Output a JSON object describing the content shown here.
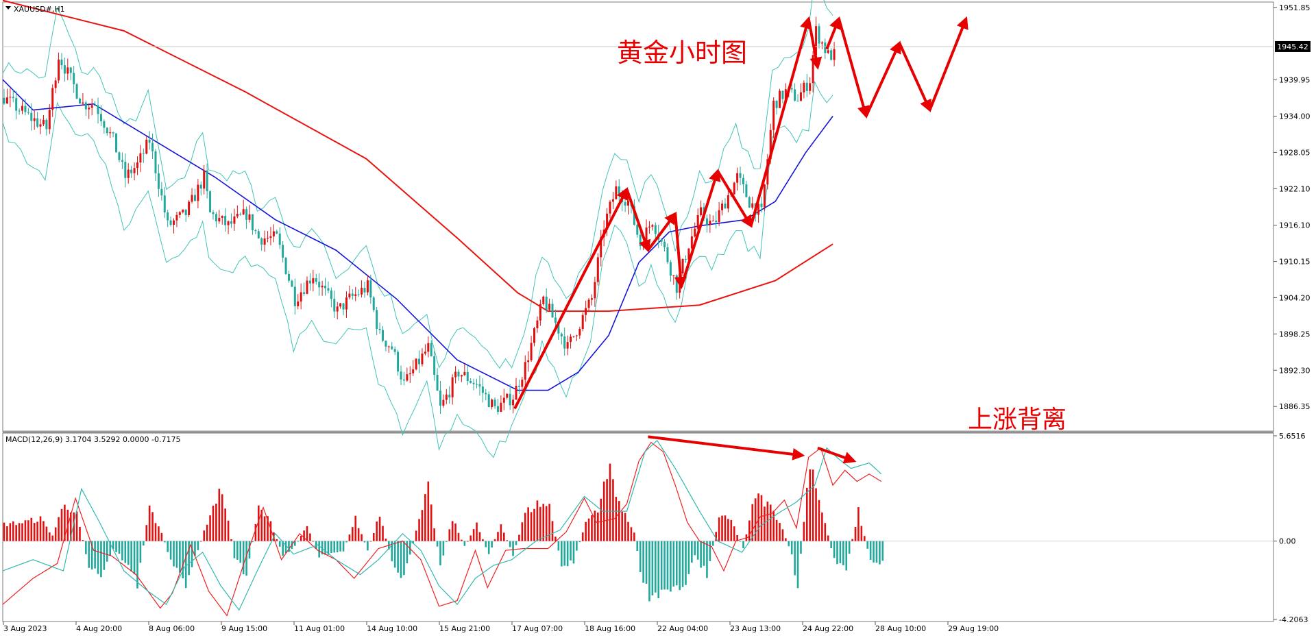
{
  "chart_data": [
    {
      "type": "candlestick",
      "symbol_label": "XAUUSD#,H1",
      "title": "黄金小时图",
      "annotation": "上涨背离",
      "current_price": "1945.42",
      "ylim": [
        1883.0,
        1952.5
      ],
      "y_tick_labels": [
        "1951.85",
        "1939.95",
        "1934.00",
        "1928.05",
        "1922.10",
        "1916.10",
        "1910.15",
        "1904.20",
        "1898.25",
        "1892.30",
        "1886.35"
      ],
      "x_tick_labels": [
        "3 Aug 2023",
        "4 Aug 20:00",
        "8 Aug 06:00",
        "9 Aug 15:00",
        "11 Aug 01:00",
        "14 Aug 10:00",
        "15 Aug 21:00",
        "17 Aug 07:00",
        "18 Aug 16:00",
        "22 Aug 04:00",
        "23 Aug 13:00",
        "24 Aug 22:00",
        "28 Aug 10:00",
        "29 Aug 19:00"
      ],
      "price_path": [
        [
          0,
          1937
        ],
        [
          8,
          1934
        ],
        [
          14,
          1932
        ],
        [
          18,
          1944
        ],
        [
          22,
          1940
        ],
        [
          26,
          1936
        ],
        [
          30,
          1936
        ],
        [
          36,
          1930
        ],
        [
          40,
          1924
        ],
        [
          44,
          1926
        ],
        [
          48,
          1930
        ],
        [
          54,
          1916
        ],
        [
          60,
          1918
        ],
        [
          66,
          1924
        ],
        [
          68,
          1918
        ],
        [
          74,
          1916
        ],
        [
          80,
          1918
        ],
        [
          84,
          1914
        ],
        [
          90,
          1914
        ],
        [
          96,
          1904
        ],
        [
          102,
          1908
        ],
        [
          106,
          1905
        ],
        [
          110,
          1902
        ],
        [
          114,
          1904
        ],
        [
          120,
          1906
        ],
        [
          124,
          1898
        ],
        [
          128,
          1896
        ],
        [
          132,
          1890
        ],
        [
          136,
          1893
        ],
        [
          140,
          1896
        ],
        [
          144,
          1886
        ],
        [
          150,
          1892
        ],
        [
          156,
          1890
        ],
        [
          162,
          1886
        ],
        [
          168,
          1888
        ],
        [
          172,
          1893
        ],
        [
          176,
          1900
        ],
        [
          178,
          1904
        ],
        [
          182,
          1900
        ],
        [
          186,
          1896
        ],
        [
          190,
          1900
        ],
        [
          194,
          1904
        ],
        [
          198,
          1916
        ],
        [
          202,
          1922
        ],
        [
          206,
          1920
        ],
        [
          210,
          1913
        ],
        [
          214,
          1917
        ],
        [
          218,
          1912
        ],
        [
          222,
          1906
        ],
        [
          226,
          1913
        ],
        [
          230,
          1918
        ],
        [
          234,
          1916
        ],
        [
          238,
          1920
        ],
        [
          242,
          1924
        ],
        [
          246,
          1920
        ],
        [
          250,
          1918
        ],
        [
          254,
          1936
        ],
        [
          258,
          1938
        ],
        [
          262,
          1937
        ],
        [
          266,
          1940
        ],
        [
          268,
          1948
        ],
        [
          272,
          1944
        ],
        [
          274,
          1944
        ]
      ],
      "indicators": {
        "ma_red": [
          [
            0,
            1953
          ],
          [
            40,
            1948
          ],
          [
            80,
            1938
          ],
          [
            120,
            1927
          ],
          [
            150,
            1914
          ],
          [
            170,
            1905
          ],
          [
            180,
            1902
          ],
          [
            200,
            1902
          ],
          [
            230,
            1903
          ],
          [
            255,
            1907
          ],
          [
            274,
            1913
          ]
        ],
        "ma_blue": [
          [
            0,
            1940
          ],
          [
            10,
            1935
          ],
          [
            30,
            1936
          ],
          [
            50,
            1930
          ],
          [
            70,
            1924
          ],
          [
            90,
            1917
          ],
          [
            110,
            1912
          ],
          [
            130,
            1904
          ],
          [
            150,
            1894
          ],
          [
            170,
            1889
          ],
          [
            180,
            1889
          ],
          [
            190,
            1892
          ],
          [
            200,
            1898
          ],
          [
            210,
            1910
          ],
          [
            220,
            1915
          ],
          [
            230,
            1916
          ],
          [
            245,
            1917
          ],
          [
            255,
            1920
          ],
          [
            265,
            1928
          ],
          [
            274,
            1934
          ]
        ]
      },
      "projection_path": [
        [
          272,
          1945
        ],
        [
          276,
          1950
        ],
        [
          285,
          1934
        ],
        [
          296,
          1946
        ],
        [
          306,
          1935
        ],
        [
          318,
          1950
        ]
      ]
    },
    {
      "type": "bar",
      "label": "MACD(12,26,9) 3.1704 3.5292 0.0000 -0.7175",
      "ylim": [
        -4.2063,
        5.6516
      ],
      "y_tick_labels": [
        "5.6516",
        "0.00",
        "-4.2063"
      ],
      "histogram_path": [
        [
          0,
          0.9
        ],
        [
          6,
          1.0
        ],
        [
          12,
          1.2
        ],
        [
          16,
          0.3
        ],
        [
          20,
          2.1
        ],
        [
          24,
          1.4
        ],
        [
          28,
          -1.3
        ],
        [
          32,
          -1.8
        ],
        [
          36,
          -0.4
        ],
        [
          40,
          -1.1
        ],
        [
          44,
          -2.3
        ],
        [
          48,
          1.8
        ],
        [
          52,
          0.4
        ],
        [
          56,
          -1.5
        ],
        [
          60,
          -2.2
        ],
        [
          64,
          -0.5
        ],
        [
          68,
          1.5
        ],
        [
          72,
          2.8
        ],
        [
          76,
          -0.8
        ],
        [
          80,
          -1.9
        ],
        [
          84,
          1.8
        ],
        [
          88,
          1.0
        ],
        [
          92,
          -0.8
        ],
        [
          96,
          -0.3
        ],
        [
          100,
          0.8
        ],
        [
          104,
          -0.8
        ],
        [
          108,
          -0.6
        ],
        [
          112,
          -0.5
        ],
        [
          116,
          1.2
        ],
        [
          120,
          -0.5
        ],
        [
          124,
          1.5
        ],
        [
          128,
          -1.2
        ],
        [
          132,
          -2.0
        ],
        [
          136,
          0.5
        ],
        [
          140,
          2.8
        ],
        [
          144,
          -1.3
        ],
        [
          148,
          1.2
        ],
        [
          152,
          -0.3
        ],
        [
          156,
          0.9
        ],
        [
          160,
          -0.7
        ],
        [
          164,
          0.9
        ],
        [
          168,
          -0.8
        ],
        [
          172,
          1.5
        ],
        [
          176,
          2.0
        ],
        [
          180,
          1.9
        ],
        [
          184,
          -1.4
        ],
        [
          188,
          -1.1
        ],
        [
          192,
          1.0
        ],
        [
          196,
          1.8
        ],
        [
          200,
          3.9
        ],
        [
          204,
          1.6
        ],
        [
          208,
          0.5
        ],
        [
          210,
          -1.7
        ],
        [
          214,
          -3.2
        ],
        [
          218,
          -2.3
        ],
        [
          224,
          -2.7
        ],
        [
          228,
          -0.7
        ],
        [
          232,
          -1.8
        ],
        [
          236,
          1.3
        ],
        [
          240,
          1.1
        ],
        [
          244,
          -0.4
        ],
        [
          248,
          2.5
        ],
        [
          252,
          2.0
        ],
        [
          256,
          1.1
        ],
        [
          260,
          -0.8
        ],
        [
          262,
          -2.5
        ],
        [
          266,
          4.5
        ],
        [
          270,
          1.6
        ],
        [
          274,
          -1.0
        ],
        [
          278,
          -1.4
        ],
        [
          282,
          1.6
        ],
        [
          286,
          -1.1
        ],
        [
          290,
          -1.2
        ]
      ],
      "macd_line": [
        [
          0,
          -3.4
        ],
        [
          10,
          -2.0
        ],
        [
          18,
          -1.2
        ],
        [
          24,
          2.3
        ],
        [
          30,
          -0.5
        ],
        [
          36,
          -0.8
        ],
        [
          44,
          -1.8
        ],
        [
          52,
          -3.6
        ],
        [
          56,
          -2.8
        ],
        [
          62,
          -0.2
        ],
        [
          68,
          -2.7
        ],
        [
          74,
          -4.0
        ],
        [
          80,
          -1.0
        ],
        [
          86,
          1.8
        ],
        [
          92,
          -1.0
        ],
        [
          98,
          0.4
        ],
        [
          104,
          -0.5
        ],
        [
          110,
          -1.0
        ],
        [
          116,
          -2.0
        ],
        [
          124,
          -0.4
        ],
        [
          132,
          0.0
        ],
        [
          138,
          -1.0
        ],
        [
          144,
          -3.5
        ],
        [
          150,
          -3.2
        ],
        [
          156,
          -0.5
        ],
        [
          160,
          -2.5
        ],
        [
          166,
          -0.5
        ],
        [
          172,
          -0.4
        ],
        [
          180,
          -0.4
        ],
        [
          186,
          0.5
        ],
        [
          192,
          2.3
        ],
        [
          196,
          1.0
        ],
        [
          202,
          1.2
        ],
        [
          206,
          2.0
        ],
        [
          210,
          4.3
        ],
        [
          214,
          5.3
        ],
        [
          218,
          4.8
        ],
        [
          222,
          3.0
        ],
        [
          226,
          1.0
        ],
        [
          230,
          0.0
        ],
        [
          234,
          -0.3
        ],
        [
          238,
          -1.6
        ],
        [
          242,
          0.0
        ],
        [
          246,
          0.2
        ],
        [
          250,
          1.3
        ],
        [
          254,
          1.5
        ],
        [
          258,
          2.2
        ],
        [
          262,
          0.7
        ],
        [
          266,
          4.5
        ],
        [
          270,
          5.0
        ],
        [
          274,
          3.0
        ],
        [
          278,
          3.8
        ],
        [
          282,
          3.2
        ],
        [
          286,
          3.6
        ],
        [
          290,
          3.2
        ]
      ],
      "signal_line": [
        [
          0,
          -1.6
        ],
        [
          10,
          -1.0
        ],
        [
          20,
          -1.6
        ],
        [
          26,
          2.8
        ],
        [
          32,
          1.0
        ],
        [
          40,
          -1.6
        ],
        [
          48,
          -2.7
        ],
        [
          54,
          -3.4
        ],
        [
          60,
          -1.4
        ],
        [
          66,
          -0.6
        ],
        [
          72,
          -2.4
        ],
        [
          78,
          -3.7
        ],
        [
          84,
          -1.6
        ],
        [
          90,
          0.4
        ],
        [
          96,
          -0.7
        ],
        [
          104,
          -0.2
        ],
        [
          110,
          -1.0
        ],
        [
          118,
          -1.8
        ],
        [
          124,
          -1.0
        ],
        [
          132,
          0.4
        ],
        [
          138,
          -0.5
        ],
        [
          144,
          -2.4
        ],
        [
          150,
          -3.4
        ],
        [
          156,
          -2.0
        ],
        [
          162,
          -1.3
        ],
        [
          168,
          -1.0
        ],
        [
          176,
          0.0
        ],
        [
          184,
          0.6
        ],
        [
          192,
          2.4
        ],
        [
          198,
          1.6
        ],
        [
          206,
          1.6
        ],
        [
          212,
          4.8
        ],
        [
          216,
          5.4
        ],
        [
          222,
          3.9
        ],
        [
          230,
          1.6
        ],
        [
          236,
          0.0
        ],
        [
          244,
          -0.6
        ],
        [
          250,
          0.8
        ],
        [
          256,
          1.5
        ],
        [
          262,
          2.1
        ],
        [
          268,
          3.0
        ],
        [
          272,
          5.0
        ],
        [
          276,
          4.4
        ],
        [
          280,
          3.9
        ],
        [
          286,
          4.2
        ],
        [
          290,
          3.6
        ]
      ],
      "divergence_arrows": [
        [
          [
            213,
            5.6
          ],
          [
            264,
            4.6
          ]
        ],
        [
          [
            269,
            5.0
          ],
          [
            281,
            4.3
          ]
        ]
      ]
    }
  ]
}
